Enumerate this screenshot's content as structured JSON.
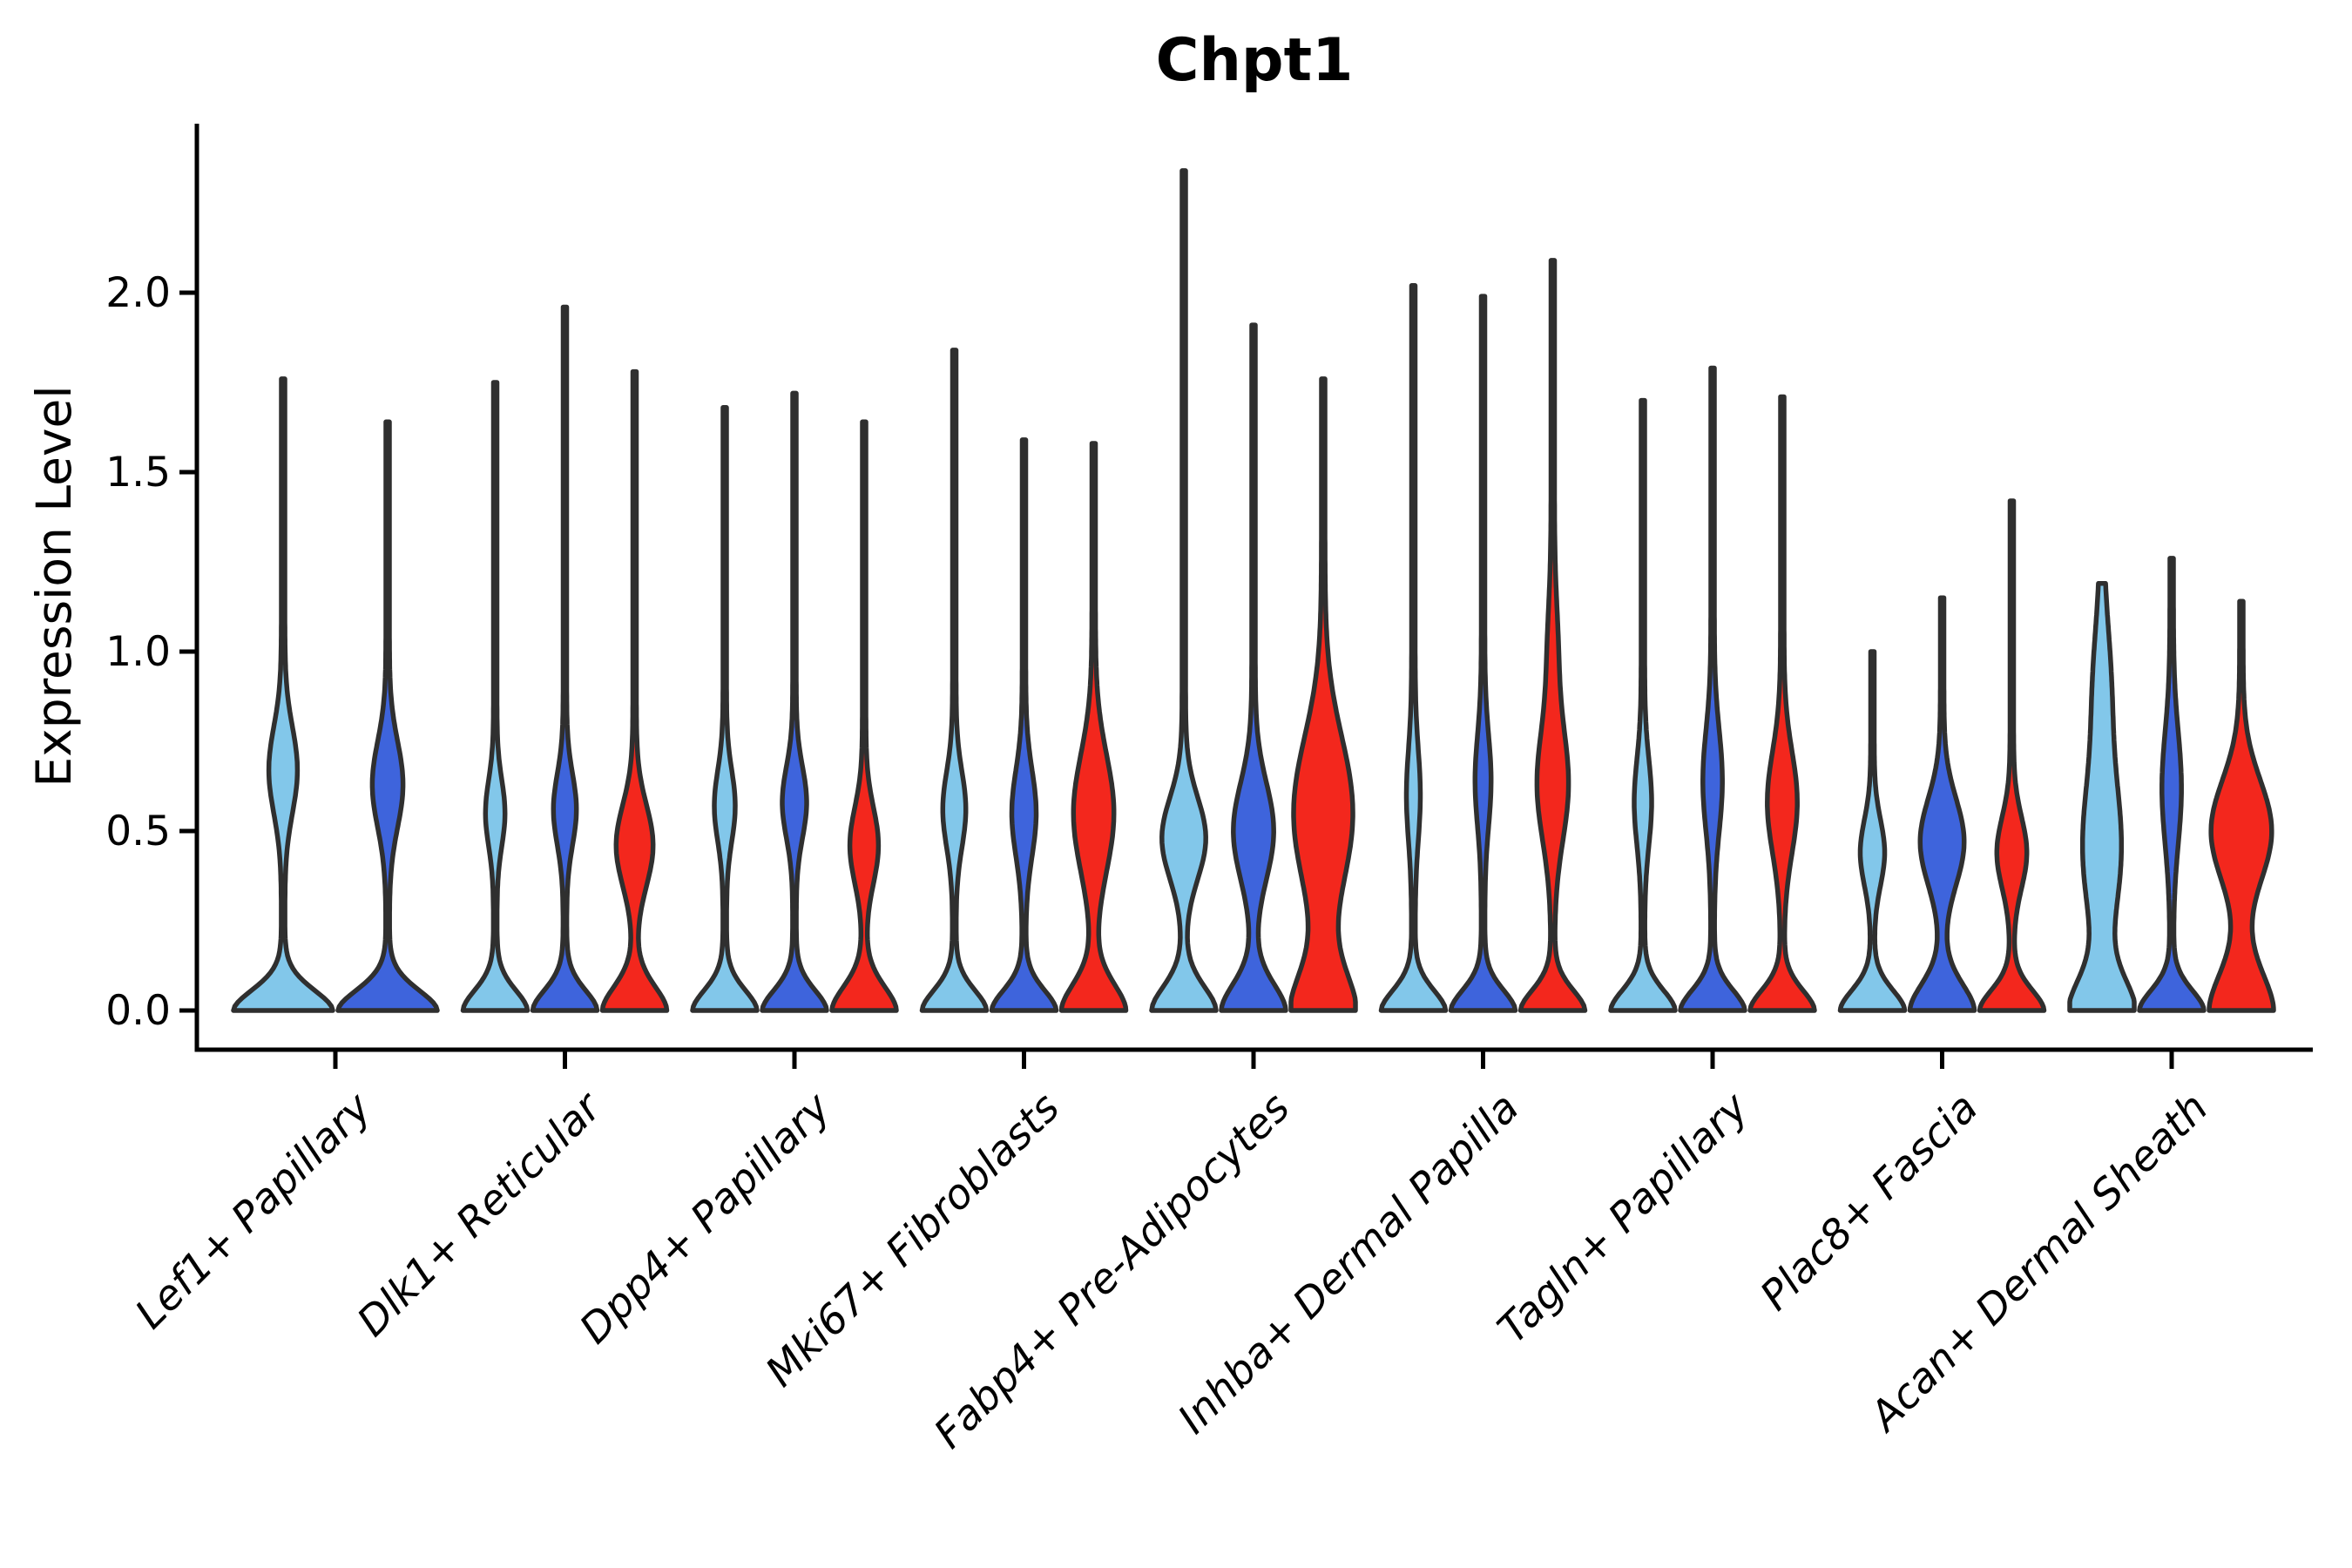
{
  "palette": {
    "blue_light": "#82C7EA",
    "blue_dark": "#3E64DC",
    "red": "#F3271D",
    "outline": "#2F2F2F",
    "axis": "#000000"
  },
  "chart_data": {
    "type": "violin",
    "title": "Chpt1",
    "ylabel": "Expression Level",
    "ylim": [
      0,
      2.46
    ],
    "yticks": [
      0.0,
      0.5,
      1.0,
      1.5,
      2.0
    ],
    "ytick_labels": [
      "0.0",
      "0.5",
      "1.0",
      "1.5",
      "2.0"
    ],
    "grid": false,
    "legend": "none",
    "series_colors": [
      "#82C7EA",
      "#3E64DC",
      "#F3271D"
    ],
    "categories": [
      "Lef1+ Papillary",
      "Dlk1+ Reticular",
      "Dpp4+ Papillary",
      "Mki67+ Fibroblasts",
      "Fabp4+ Pre-Adipocytes",
      "Inhba+ Dermal Papilla",
      "Tagln+ Papillary",
      "Plac8+ Fascia",
      "Acan+ Dermal Sheath"
    ],
    "groups": [
      {
        "category": "Lef1+ Papillary",
        "violins": [
          {
            "color": "blue_light",
            "peak": 1.76,
            "bulge_center": 0.67,
            "bulge_sigma": 0.17,
            "bulge_width": 0.24
          },
          {
            "color": "blue_dark",
            "peak": 1.64,
            "bulge_center": 0.63,
            "bulge_sigma": 0.17,
            "bulge_width": 0.26
          }
        ]
      },
      {
        "category": "Dlk1+ Reticular",
        "violins": [
          {
            "color": "blue_light",
            "peak": 1.75,
            "bulge_center": 0.55,
            "bulge_sigma": 0.13,
            "bulge_width": 0.23
          },
          {
            "color": "blue_dark",
            "peak": 1.96,
            "bulge_center": 0.56,
            "bulge_sigma": 0.14,
            "bulge_width": 0.28
          },
          {
            "color": "red",
            "peak": 1.78,
            "bulge_center": 0.46,
            "bulge_sigma": 0.16,
            "bulge_width": 0.48,
            "base_spread": 0.1
          }
        ]
      },
      {
        "category": "Dpp4+ Papillary",
        "violins": [
          {
            "color": "blue_light",
            "peak": 1.68,
            "bulge_center": 0.57,
            "bulge_sigma": 0.14,
            "bulge_width": 0.25
          },
          {
            "color": "blue_dark",
            "peak": 1.72,
            "bulge_center": 0.58,
            "bulge_sigma": 0.14,
            "bulge_width": 0.3
          },
          {
            "color": "red",
            "peak": 1.64,
            "bulge_center": 0.46,
            "bulge_sigma": 0.15,
            "bulge_width": 0.36,
            "base_spread": 0.1
          }
        ]
      },
      {
        "category": "Mki67+ Fibroblasts",
        "violins": [
          {
            "color": "blue_light",
            "peak": 1.84,
            "bulge_center": 0.56,
            "bulge_sigma": 0.15,
            "bulge_width": 0.28
          },
          {
            "color": "blue_dark",
            "peak": 1.59,
            "bulge_center": 0.55,
            "bulge_sigma": 0.17,
            "bulge_width": 0.3
          },
          {
            "color": "red",
            "peak": 1.58,
            "bulge_center": 0.55,
            "bulge_sigma": 0.23,
            "bulge_width": 0.53,
            "base_spread": 0.11
          }
        ]
      },
      {
        "category": "Fabp4+ Pre-Adipocytes",
        "violins": [
          {
            "color": "blue_light",
            "peak": 2.34,
            "bulge_center": 0.48,
            "bulge_sigma": 0.16,
            "bulge_width": 0.58,
            "base_spread": 0.1
          },
          {
            "color": "blue_dark",
            "peak": 1.91,
            "bulge_center": 0.5,
            "bulge_sigma": 0.19,
            "bulge_width": 0.53,
            "base_spread": 0.11
          },
          {
            "color": "red",
            "peak": 1.76,
            "bulge_center": 0.55,
            "bulge_sigma": 0.3,
            "bulge_width": 0.8,
            "base_spread": 0.16
          }
        ]
      },
      {
        "category": "Inhba+ Dermal Papilla",
        "violins": [
          {
            "color": "blue_light",
            "peak": 2.02,
            "bulge_center": 0.6,
            "bulge_sigma": 0.18,
            "bulge_width": 0.15
          },
          {
            "color": "blue_dark",
            "peak": 1.99,
            "bulge_center": 0.64,
            "bulge_sigma": 0.18,
            "bulge_width": 0.18
          },
          {
            "color": "red",
            "peak": 2.09,
            "bulge_center": 0.63,
            "bulge_sigma": 0.22,
            "bulge_width": 0.4,
            "bulge2": {
              "center": 1.0,
              "sigma": 0.2,
              "width": 0.1
            }
          }
        ]
      },
      {
        "category": "Tagln+ Papillary",
        "violins": [
          {
            "color": "blue_light",
            "peak": 1.7,
            "bulge_center": 0.58,
            "bulge_sigma": 0.17,
            "bulge_width": 0.2
          },
          {
            "color": "blue_dark",
            "peak": 1.79,
            "bulge_center": 0.64,
            "bulge_sigma": 0.2,
            "bulge_width": 0.23
          },
          {
            "color": "red",
            "peak": 1.71,
            "bulge_center": 0.58,
            "bulge_sigma": 0.2,
            "bulge_width": 0.38
          }
        ]
      },
      {
        "category": "Plac8+ Fascia",
        "violins": [
          {
            "color": "blue_light",
            "peak": 1.0,
            "bulge_center": 0.44,
            "bulge_sigma": 0.13,
            "bulge_width": 0.3
          },
          {
            "color": "blue_dark",
            "peak": 1.15,
            "bulge_center": 0.47,
            "bulge_sigma": 0.17,
            "bulge_width": 0.58,
            "base_spread": 0.11
          },
          {
            "color": "red",
            "peak": 1.42,
            "bulge_center": 0.44,
            "bulge_sigma": 0.14,
            "bulge_width": 0.38
          }
        ]
      },
      {
        "category": "Acan+ Dermal Sheath",
        "violins": [
          {
            "color": "blue_light",
            "peak": 1.19,
            "bulge_center": 0.45,
            "bulge_sigma": 0.28,
            "bulge_width": 0.5,
            "base_spread": 0.13,
            "bulge2": {
              "center": 0.9,
              "sigma": 0.25,
              "width": 0.2
            }
          },
          {
            "color": "blue_dark",
            "peak": 1.26,
            "bulge_center": 0.62,
            "bulge_sigma": 0.22,
            "bulge_width": 0.23
          },
          {
            "color": "red",
            "peak": 1.14,
            "bulge_center": 0.5,
            "bulge_sigma": 0.2,
            "bulge_width": 0.82,
            "base_spread": 0.16
          }
        ]
      }
    ]
  }
}
